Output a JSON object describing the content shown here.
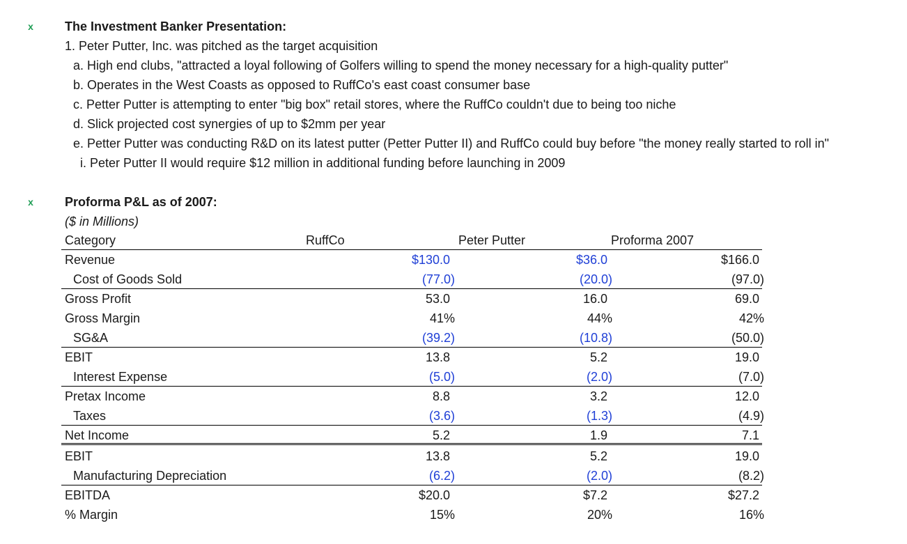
{
  "section1": {
    "marker": "x",
    "title": "The Investment Banker Presentation:",
    "lines": [
      "1. Peter Putter, Inc. was pitched as the target acquisition",
      "a. High end clubs, \"attracted a loyal following of Golfers willing to spend the money necessary for a high-quality putter\"",
      "b. Operates in the West Coasts as opposed to RuffCo's east coast consumer base",
      "c. Petter Putter is attempting to enter \"big box\" retail stores, where the RuffCo couldn't due to being too niche",
      "d. Slick projected cost synergies of up to $2mm per year",
      "e. Petter Putter was conducting R&D on its latest putter (Petter Putter II) and RuffCo could buy before \"the money really started to roll in\"",
      "i. Peter Putter II would require $12 million in additional funding before launching in 2009"
    ]
  },
  "section2": {
    "marker": "x",
    "title": "Proforma P&L as of 2007:",
    "subtitle": "($ in Millions)"
  },
  "table": {
    "headers": [
      "Category",
      "RuffCo",
      "Peter Putter",
      "Proforma 2007"
    ],
    "rows": [
      {
        "label": "Revenue",
        "ruffco": "$130.0",
        "pp": "$36.0",
        "pf": "$166.0"
      },
      {
        "label": "Cost of Goods Sold",
        "ruffco": "(77.0)",
        "pp": "(20.0)",
        "pf": "(97.0)"
      },
      {
        "label": "Gross Profit",
        "ruffco": "53.0",
        "pp": "16.0",
        "pf": "69.0"
      },
      {
        "label": "Gross Margin",
        "ruffco": "41%",
        "pp": "44%",
        "pf": "42%"
      },
      {
        "label": "SG&A",
        "ruffco": "(39.2)",
        "pp": "(10.8)",
        "pf": "(50.0)"
      },
      {
        "label": "EBIT",
        "ruffco": "13.8",
        "pp": "5.2",
        "pf": "19.0"
      },
      {
        "label": "Interest Expense",
        "ruffco": "(5.0)",
        "pp": "(2.0)",
        "pf": "(7.0)"
      },
      {
        "label": "Pretax Income",
        "ruffco": "8.8",
        "pp": "3.2",
        "pf": "12.0"
      },
      {
        "label": "Taxes",
        "ruffco": "(3.6)",
        "pp": "(1.3)",
        "pf": "(4.9)"
      },
      {
        "label": "Net Income",
        "ruffco": "5.2",
        "pp": "1.9",
        "pf": "7.1"
      },
      {
        "label": "EBIT",
        "ruffco": "13.8",
        "pp": "5.2",
        "pf": "19.0"
      },
      {
        "label": "Manufacturing Depreciation",
        "ruffco": "(6.2)",
        "pp": "(2.0)",
        "pf": "(8.2)"
      },
      {
        "label": "EBITDA",
        "ruffco": "$20.0",
        "pp": "$7.2",
        "pf": "$27.2"
      },
      {
        "label": "% Margin",
        "ruffco": "15%",
        "pp": "20%",
        "pf": "16%"
      }
    ]
  },
  "colors": {
    "input_blue": "#1f3fd6",
    "marker_green": "#1f9d55"
  }
}
